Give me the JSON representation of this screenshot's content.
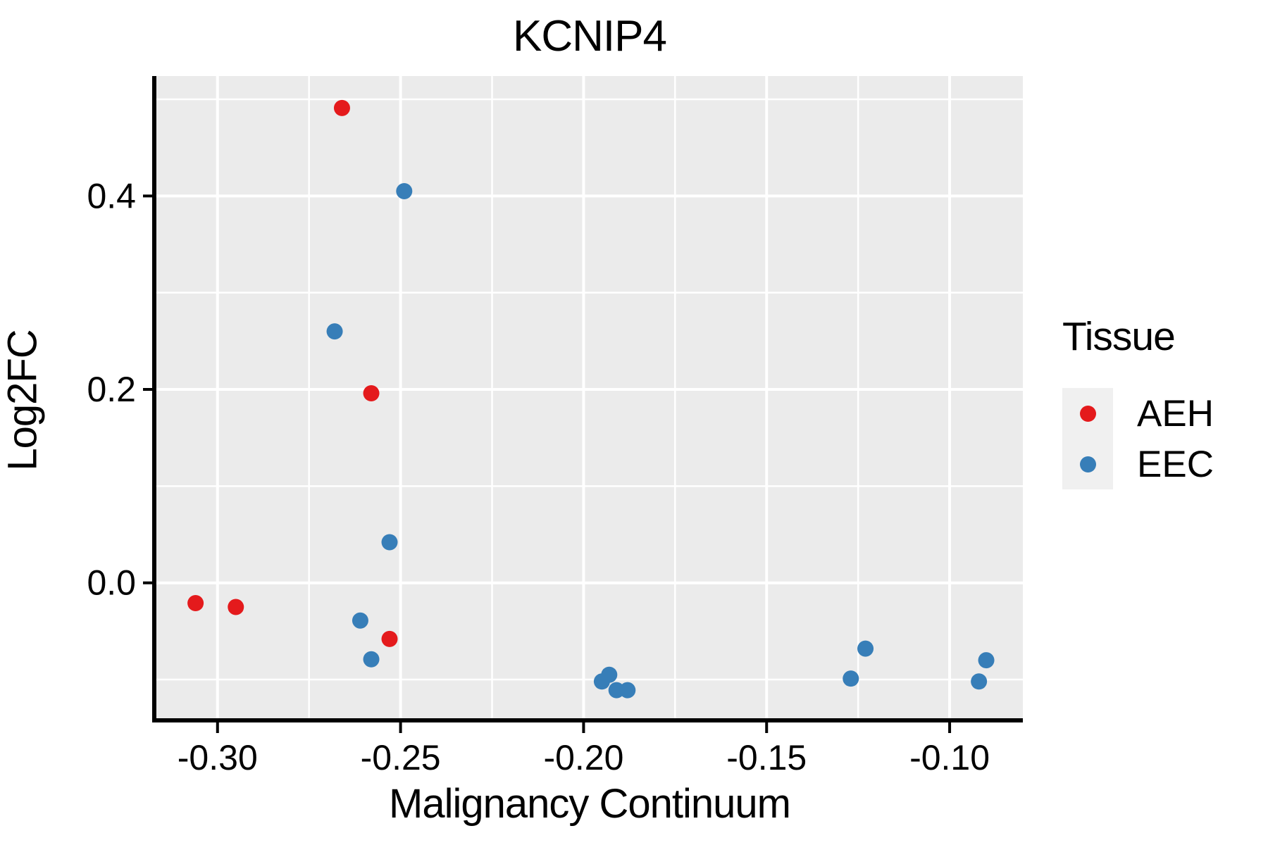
{
  "figure": {
    "title": "KCNIP4",
    "x_axis_label": "Malignancy Continuum",
    "y_axis_label": "Log2FC"
  },
  "legend": {
    "title": "Tissue",
    "entries": [
      {
        "label": "AEH",
        "color": "#E41A1C"
      },
      {
        "label": "EEC",
        "color": "#377EB8"
      }
    ]
  },
  "chart_data": {
    "type": "scatter",
    "title": "KCNIP4",
    "xlabel": "Malignancy Continuum",
    "ylabel": "Log2FC",
    "xlim": [
      -0.3167,
      -0.08
    ],
    "ylim": [
      -0.14,
      0.524
    ],
    "x_ticks": [
      -0.3,
      -0.25,
      -0.2,
      -0.15,
      -0.1
    ],
    "x_tick_labels": [
      "-0.30",
      "-0.25",
      "-0.20",
      "-0.15",
      "-0.10"
    ],
    "y_ticks": [
      0.0,
      0.2,
      0.4
    ],
    "y_tick_labels": [
      "0.0",
      "0.2",
      "0.4"
    ],
    "x_minor_gridlines": [
      -0.275,
      -0.225,
      -0.175,
      -0.125
    ],
    "y_minor_gridlines": [
      -0.1,
      0.1,
      0.3,
      0.5
    ],
    "grid": true,
    "legend_position": "right",
    "panel_background": "#EBEBEB",
    "gridline_color": "#FFFFFF",
    "series": [
      {
        "name": "AEH",
        "color": "#E41A1C",
        "points": [
          [
            -0.266,
            0.491
          ],
          [
            -0.258,
            0.196
          ],
          [
            -0.306,
            -0.021
          ],
          [
            -0.295,
            -0.025
          ],
          [
            -0.253,
            -0.058
          ]
        ]
      },
      {
        "name": "EEC",
        "color": "#377EB8",
        "points": [
          [
            -0.249,
            0.405
          ],
          [
            -0.268,
            0.26
          ],
          [
            -0.253,
            0.042
          ],
          [
            -0.261,
            -0.039
          ],
          [
            -0.258,
            -0.079
          ],
          [
            -0.195,
            -0.102
          ],
          [
            -0.193,
            -0.095
          ],
          [
            -0.191,
            -0.111
          ],
          [
            -0.188,
            -0.111
          ],
          [
            -0.127,
            -0.099
          ],
          [
            -0.123,
            -0.068
          ],
          [
            -0.092,
            -0.102
          ],
          [
            -0.09,
            -0.08
          ]
        ]
      }
    ]
  }
}
